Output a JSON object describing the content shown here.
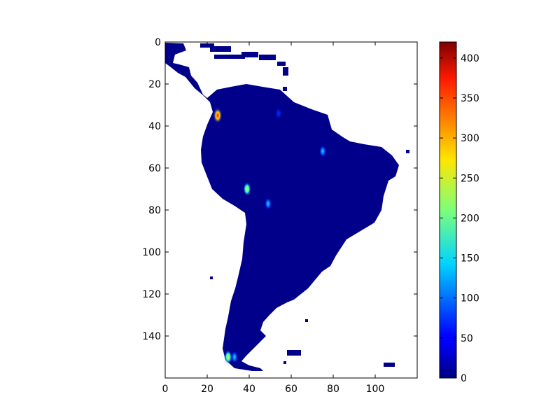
{
  "chart_data": {
    "type": "heatmap",
    "title": "",
    "xlabel": "",
    "ylabel": "",
    "x_range": [
      0,
      120
    ],
    "y_range": [
      0,
      160
    ],
    "y_inverted": true,
    "x_ticks": [
      "0",
      "20",
      "40",
      "60",
      "80",
      "100"
    ],
    "y_ticks": [
      "0",
      "20",
      "40",
      "60",
      "80",
      "100",
      "120",
      "140"
    ],
    "colorbar": {
      "colormap": "jet",
      "range": [
        0,
        420
      ],
      "ticks": [
        "0",
        "50",
        "100",
        "150",
        "200",
        "250",
        "300",
        "350",
        "400"
      ]
    },
    "background_value_estimate": 5,
    "hotspots": [
      {
        "x": 25,
        "y": 35,
        "value": 380
      },
      {
        "x": 39,
        "y": 70,
        "value": 260
      },
      {
        "x": 49,
        "y": 77,
        "value": 160
      },
      {
        "x": 75,
        "y": 52,
        "value": 110
      },
      {
        "x": 54,
        "y": 34,
        "value": 70
      },
      {
        "x": 30,
        "y": 150,
        "value": 230
      },
      {
        "x": 33,
        "y": 150,
        "value": 150
      }
    ],
    "grid": false
  }
}
